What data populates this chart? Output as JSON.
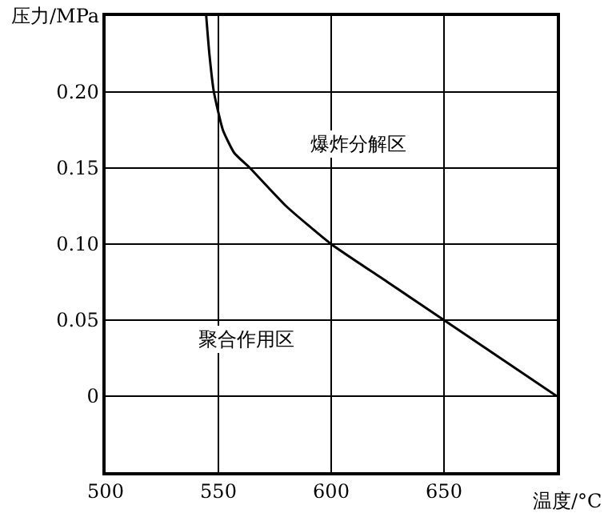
{
  "chart_data": {
    "type": "line",
    "xlabel": "温度/°C",
    "ylabel": "压力/MPa",
    "x": [
      544.6,
      546,
      548,
      552,
      557,
      564,
      580,
      600,
      625,
      650,
      675,
      700
    ],
    "series": [
      {
        "color": "#000000",
        "values": [
          0.25,
          0.225,
          0.2,
          0.175,
          0.16,
          0.15,
          0.125,
          0.1,
          0.075,
          0.05,
          0.025,
          0
        ]
      }
    ],
    "xlim": [
      500,
      700
    ],
    "xticks": [
      500,
      550,
      600,
      650
    ],
    "ylim": [
      -0.05,
      0.25
    ],
    "yticks": [
      0,
      0.05,
      {
        "value": 0.1,
        "label": "0.10"
      },
      0.15,
      {
        "value": 0.2,
        "label": "0.20"
      }
    ],
    "annotations": [
      "爆炸分解区",
      "聚合作用区"
    ],
    "grid": true,
    "marker": "none",
    "line_style": "solid"
  }
}
